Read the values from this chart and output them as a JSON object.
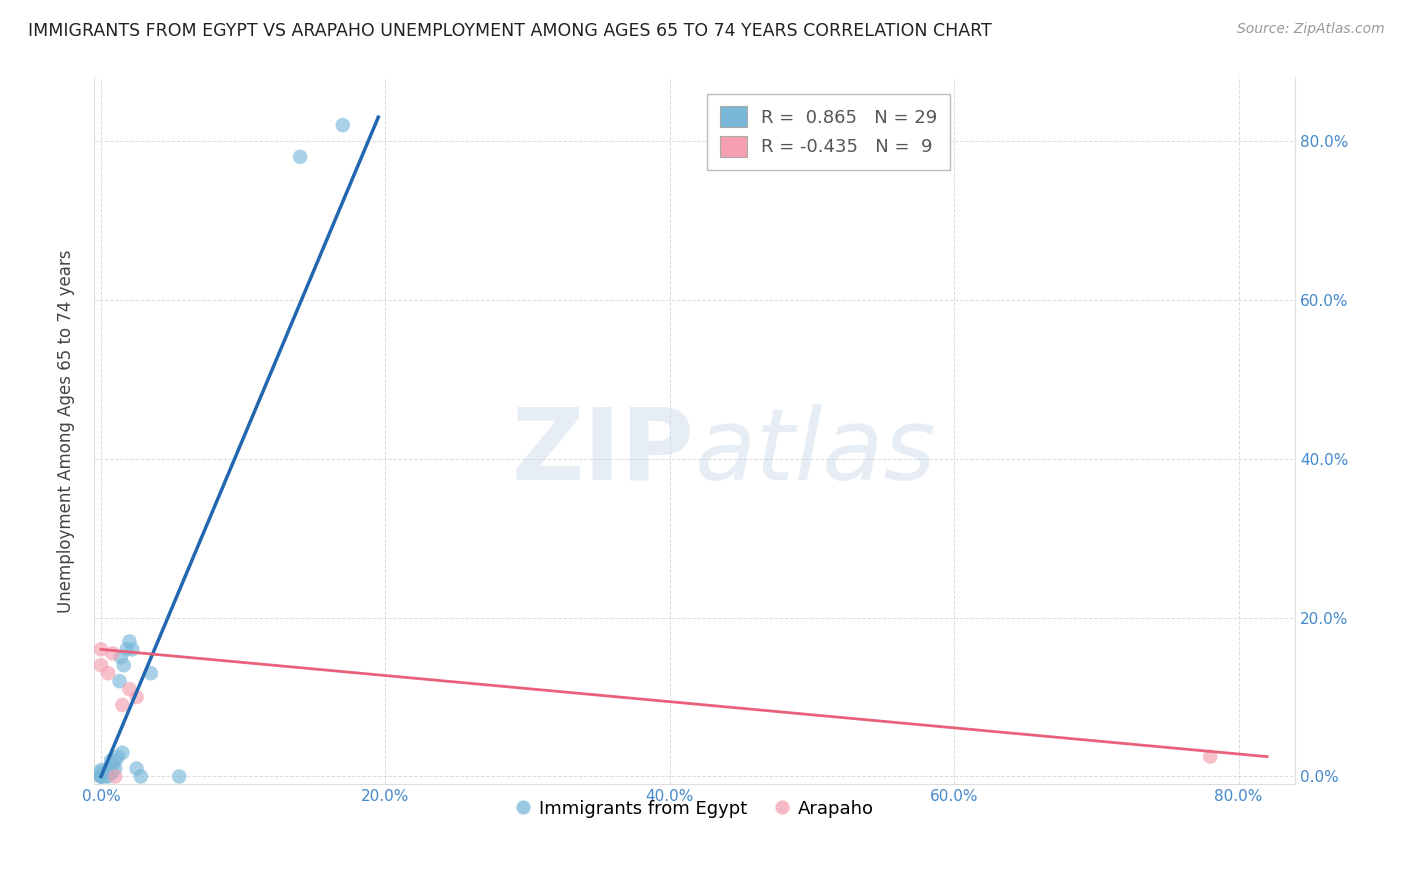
{
  "title": "IMMIGRANTS FROM EGYPT VS ARAPAHO UNEMPLOYMENT AMONG AGES 65 TO 74 YEARS CORRELATION CHART",
  "source": "Source: ZipAtlas.com",
  "ylabel": "Unemployment Among Ages 65 to 74 years",
  "xlim": [
    -0.005,
    0.84
  ],
  "ylim": [
    -0.01,
    0.88
  ],
  "xticks": [
    0.0,
    0.2,
    0.4,
    0.6,
    0.8
  ],
  "xticklabels": [
    "0.0%",
    "20.0%",
    "40.0%",
    "60.0%",
    "80.0%"
  ],
  "yticks": [
    0.0,
    0.2,
    0.4,
    0.6,
    0.8
  ],
  "yticklabels": [
    "0.0%",
    "20.0%",
    "40.0%",
    "60.0%",
    "80.0%"
  ],
  "blue_R": "0.865",
  "blue_N": "29",
  "pink_R": "-0.435",
  "pink_N": "9",
  "blue_color": "#7ab8d9",
  "pink_color": "#f4a0b0",
  "blue_line_color": "#2268b0",
  "pink_line_color": "#e8607a",
  "watermark_zip": "ZIP",
  "watermark_atlas": "atlas",
  "legend_label_blue": "Immigrants from Egypt",
  "legend_label_pink": "Arapaho",
  "blue_scatter_x": [
    0.0,
    0.0,
    0.0,
    0.0,
    0.0,
    0.003,
    0.003,
    0.005,
    0.005,
    0.006,
    0.007,
    0.008,
    0.008,
    0.01,
    0.01,
    0.012,
    0.013,
    0.014,
    0.015,
    0.016,
    0.018,
    0.02,
    0.022,
    0.025,
    0.028,
    0.035,
    0.055,
    0.14,
    0.17
  ],
  "blue_scatter_y": [
    0.0,
    0.0,
    0.0,
    0.005,
    0.008,
    0.0,
    0.005,
    0.0,
    0.01,
    0.005,
    0.02,
    0.005,
    0.015,
    0.01,
    0.02,
    0.025,
    0.12,
    0.15,
    0.03,
    0.14,
    0.16,
    0.17,
    0.16,
    0.01,
    0.0,
    0.13,
    0.0,
    0.78,
    0.82
  ],
  "pink_scatter_x": [
    0.0,
    0.0,
    0.005,
    0.008,
    0.01,
    0.015,
    0.02,
    0.025,
    0.78
  ],
  "pink_scatter_y": [
    0.14,
    0.16,
    0.13,
    0.155,
    0.0,
    0.09,
    0.11,
    0.1,
    0.025
  ],
  "blue_trendline_x": [
    0.0,
    0.195
  ],
  "blue_trendline_y": [
    0.0,
    0.83
  ],
  "pink_trendline_x": [
    0.0,
    0.82
  ],
  "pink_trendline_y": [
    0.16,
    0.025
  ]
}
